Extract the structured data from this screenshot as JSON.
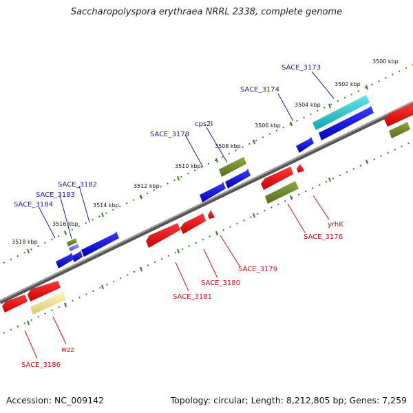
{
  "title": "Saccharopolyspora erythraea NRRL 2338, complete genome",
  "footer": {
    "accession": "Accession: NC_009142",
    "summary": "Topology: circular; Length: 8,212,805 bp; Genes: 7,259"
  },
  "colors": {
    "forward_label": "#1a1aa8",
    "reverse_label": "#cc1111",
    "backbone": "#7a7a7a",
    "ticks": "#2e7d1e"
  },
  "tick_labels": [
    "3500 kbp",
    "3502 kbp",
    "3504 kbp",
    "3506 kbp",
    "3508 kbp",
    "3510 kbp",
    "3512 kbp",
    "3514 kbp",
    "3516 kbp",
    "3518 kbp"
  ],
  "forward_genes": [
    "SACE_3173",
    "SACE_3174",
    "cps2I",
    "SACE_3178",
    "SACE_3182",
    "SACE_3183",
    "SACE_3184"
  ],
  "reverse_genes": [
    "yrhK",
    "SACE_3176",
    "SACE_3179",
    "SACE_3180",
    "SACE_3181",
    "wzz",
    "SACE_3186"
  ]
}
